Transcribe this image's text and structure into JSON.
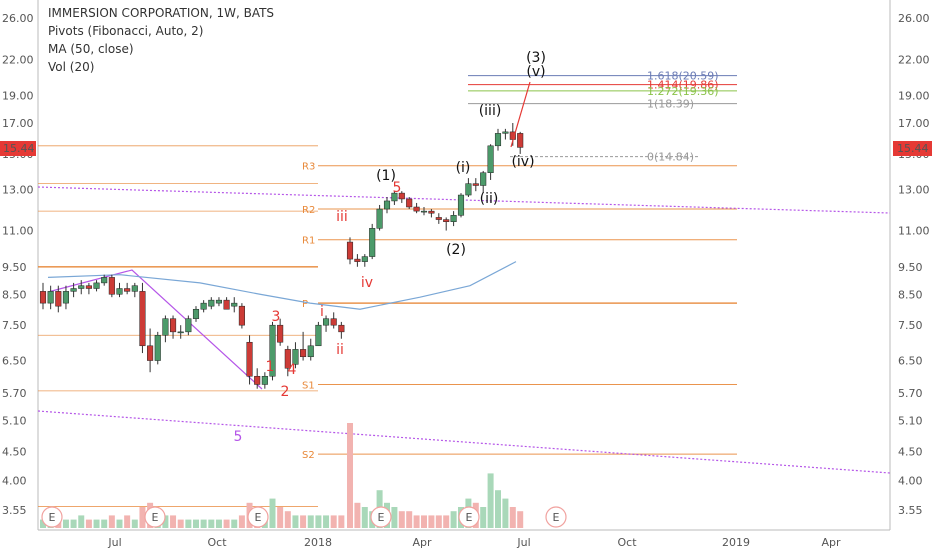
{
  "header": {
    "title": "IMMERSION CORPORATION, 1W, BATS",
    "indicator1": "Pivots (Fibonacci, Auto, 2)",
    "indicator2": "MA (50, close)",
    "indicator3": "Vol (20)"
  },
  "price_badge": "15.44",
  "colors": {
    "up": "#4c9a6a",
    "down": "#cc3b36",
    "pivot": "#e8893a",
    "fib1618": "#6a7bb5",
    "fib1414": "#e53935",
    "fib1272": "#8bc34a",
    "fib1": "#999999",
    "purple": "#b556e8",
    "ma": "#7aa7d6",
    "badge": "#e53935"
  },
  "chart_data": {
    "type": "candlestick",
    "y_ticks": [
      "26.00",
      "22.00",
      "19.00",
      "17.00",
      "15.00",
      "13.00",
      "11.00",
      "9.50",
      "8.50",
      "7.50",
      "6.50",
      "5.70",
      "5.10",
      "4.50",
      "4.00",
      "3.55"
    ],
    "x_ticks": [
      "Jul",
      "Oct",
      "2018",
      "Apr",
      "Jul",
      "Oct",
      "2019",
      "Apr"
    ],
    "candles": [
      {
        "o": 8.6,
        "h": 8.9,
        "l": 8.0,
        "c": 8.2
      },
      {
        "o": 8.2,
        "h": 8.8,
        "l": 8.0,
        "c": 8.6
      },
      {
        "o": 8.6,
        "h": 8.8,
        "l": 7.9,
        "c": 8.1
      },
      {
        "o": 8.2,
        "h": 8.8,
        "l": 8.0,
        "c": 8.6
      },
      {
        "o": 8.6,
        "h": 8.9,
        "l": 8.4,
        "c": 8.7
      },
      {
        "o": 8.7,
        "h": 9.0,
        "l": 8.5,
        "c": 8.8
      },
      {
        "o": 8.8,
        "h": 8.9,
        "l": 8.5,
        "c": 8.7
      },
      {
        "o": 8.7,
        "h": 9.0,
        "l": 8.6,
        "c": 8.9
      },
      {
        "o": 8.9,
        "h": 9.2,
        "l": 8.8,
        "c": 9.1
      },
      {
        "o": 9.1,
        "h": 9.2,
        "l": 8.4,
        "c": 8.5
      },
      {
        "o": 8.5,
        "h": 8.9,
        "l": 8.4,
        "c": 8.7
      },
      {
        "o": 8.7,
        "h": 8.9,
        "l": 8.5,
        "c": 8.6
      },
      {
        "o": 8.6,
        "h": 8.9,
        "l": 8.4,
        "c": 8.8
      },
      {
        "o": 8.6,
        "h": 8.9,
        "l": 6.7,
        "c": 6.9
      },
      {
        "o": 6.9,
        "h": 7.4,
        "l": 6.2,
        "c": 6.5
      },
      {
        "o": 6.5,
        "h": 7.3,
        "l": 6.4,
        "c": 7.2
      },
      {
        "o": 7.2,
        "h": 7.8,
        "l": 7.0,
        "c": 7.7
      },
      {
        "o": 7.7,
        "h": 7.8,
        "l": 7.1,
        "c": 7.3
      },
      {
        "o": 7.3,
        "h": 7.5,
        "l": 7.1,
        "c": 7.3
      },
      {
        "o": 7.3,
        "h": 7.8,
        "l": 7.2,
        "c": 7.7
      },
      {
        "o": 7.7,
        "h": 8.1,
        "l": 7.6,
        "c": 8.0
      },
      {
        "o": 8.0,
        "h": 8.3,
        "l": 7.9,
        "c": 8.2
      },
      {
        "o": 8.1,
        "h": 8.4,
        "l": 8.0,
        "c": 8.3
      },
      {
        "o": 8.2,
        "h": 8.4,
        "l": 8.1,
        "c": 8.3
      },
      {
        "o": 8.3,
        "h": 8.4,
        "l": 8.0,
        "c": 8.0
      },
      {
        "o": 8.1,
        "h": 8.4,
        "l": 7.9,
        "c": 8.2
      },
      {
        "o": 8.1,
        "h": 8.2,
        "l": 7.4,
        "c": 7.5
      },
      {
        "o": 7.0,
        "h": 7.2,
        "l": 5.9,
        "c": 6.1
      },
      {
        "o": 6.1,
        "h": 6.3,
        "l": 5.8,
        "c": 5.9
      },
      {
        "o": 5.9,
        "h": 6.2,
        "l": 5.8,
        "c": 6.1
      },
      {
        "o": 6.1,
        "h": 7.6,
        "l": 6.0,
        "c": 7.5
      },
      {
        "o": 7.5,
        "h": 7.7,
        "l": 6.9,
        "c": 7.0
      },
      {
        "o": 6.8,
        "h": 6.9,
        "l": 6.1,
        "c": 6.3
      },
      {
        "o": 6.4,
        "h": 7.0,
        "l": 6.3,
        "c": 6.8
      },
      {
        "o": 6.8,
        "h": 7.3,
        "l": 6.5,
        "c": 6.6
      },
      {
        "o": 6.6,
        "h": 7.1,
        "l": 6.5,
        "c": 6.9
      },
      {
        "o": 6.9,
        "h": 7.6,
        "l": 6.9,
        "c": 7.5
      },
      {
        "o": 7.5,
        "h": 7.8,
        "l": 7.3,
        "c": 7.7
      },
      {
        "o": 7.7,
        "h": 7.9,
        "l": 7.4,
        "c": 7.5
      },
      {
        "o": 7.5,
        "h": 7.6,
        "l": 7.1,
        "c": 7.3
      },
      {
        "o": 10.5,
        "h": 10.7,
        "l": 9.6,
        "c": 9.8
      },
      {
        "o": 9.8,
        "h": 10.0,
        "l": 9.5,
        "c": 9.7
      },
      {
        "o": 9.7,
        "h": 10.0,
        "l": 9.5,
        "c": 9.9
      },
      {
        "o": 9.9,
        "h": 11.3,
        "l": 9.8,
        "c": 11.1
      },
      {
        "o": 11.1,
        "h": 12.2,
        "l": 11.0,
        "c": 12.0
      },
      {
        "o": 12.0,
        "h": 12.6,
        "l": 11.8,
        "c": 12.4
      },
      {
        "o": 12.4,
        "h": 12.9,
        "l": 12.2,
        "c": 12.8
      },
      {
        "o": 12.8,
        "h": 12.9,
        "l": 12.3,
        "c": 12.5
      },
      {
        "o": 12.5,
        "h": 12.6,
        "l": 12.0,
        "c": 12.1
      },
      {
        "o": 12.1,
        "h": 12.3,
        "l": 11.8,
        "c": 11.9
      },
      {
        "o": 11.9,
        "h": 12.1,
        "l": 11.7,
        "c": 11.9
      },
      {
        "o": 11.9,
        "h": 12.0,
        "l": 11.6,
        "c": 11.8
      },
      {
        "o": 11.6,
        "h": 11.8,
        "l": 11.3,
        "c": 11.5
      },
      {
        "o": 11.5,
        "h": 11.6,
        "l": 11.0,
        "c": 11.4
      },
      {
        "o": 11.4,
        "h": 11.9,
        "l": 11.2,
        "c": 11.7
      },
      {
        "o": 11.7,
        "h": 12.8,
        "l": 11.6,
        "c": 12.7
      },
      {
        "o": 12.7,
        "h": 13.6,
        "l": 12.6,
        "c": 13.3
      },
      {
        "o": 13.3,
        "h": 13.6,
        "l": 12.9,
        "c": 13.2
      },
      {
        "o": 13.2,
        "h": 14.0,
        "l": 12.8,
        "c": 13.9
      },
      {
        "o": 13.9,
        "h": 15.6,
        "l": 13.5,
        "c": 15.5
      },
      {
        "o": 15.5,
        "h": 16.6,
        "l": 15.2,
        "c": 16.3
      },
      {
        "o": 16.3,
        "h": 16.6,
        "l": 15.9,
        "c": 16.4
      },
      {
        "o": 16.4,
        "h": 17.0,
        "l": 15.5,
        "c": 15.9
      },
      {
        "o": 16.3,
        "h": 16.4,
        "l": 15.0,
        "c": 15.4
      }
    ],
    "volume": [
      2,
      3,
      2,
      2,
      2,
      3,
      2,
      2,
      2,
      3,
      2,
      3,
      2,
      5,
      6,
      4,
      3,
      3,
      2,
      2,
      2,
      2,
      2,
      2,
      2,
      2,
      3,
      6,
      4,
      3,
      7,
      5,
      4,
      3,
      3,
      3,
      3,
      3,
      3,
      3,
      25,
      6,
      5,
      4,
      9,
      6,
      5,
      4,
      4,
      3,
      3,
      3,
      3,
      3,
      4,
      5,
      7,
      6,
      5,
      13,
      9,
      7,
      5,
      4
    ],
    "volume_up": [
      true,
      true,
      false,
      true,
      true,
      true,
      false,
      true,
      true,
      false,
      true,
      false,
      true,
      false,
      false,
      true,
      true,
      false,
      false,
      true,
      true,
      true,
      true,
      true,
      false,
      true,
      false,
      false,
      false,
      true,
      true,
      false,
      false,
      true,
      false,
      true,
      true,
      true,
      false,
      false,
      false,
      false,
      true,
      true,
      true,
      true,
      true,
      false,
      false,
      false,
      false,
      false,
      false,
      false,
      true,
      true,
      true,
      false,
      true,
      true,
      true,
      true,
      false,
      false
    ],
    "ma50": [
      [
        48,
        9.1
      ],
      [
        120,
        9.2
      ],
      [
        200,
        8.9
      ],
      [
        260,
        8.5
      ],
      [
        310,
        8.2
      ],
      [
        360,
        8.0
      ],
      [
        420,
        8.4
      ],
      [
        470,
        8.8
      ],
      [
        516,
        9.7
      ]
    ],
    "pivots": [
      {
        "label": "R3",
        "price": 14.3
      },
      {
        "label": "R2",
        "price": 12.0
      },
      {
        "label": "R1",
        "price": 10.6
      },
      {
        "label": "P",
        "price": 8.2
      },
      {
        "label": "S1",
        "price": 5.9
      },
      {
        "label": "S2",
        "price": 4.45
      }
    ],
    "pivot_tick_labels": [
      {
        "label": "R3",
        "text": "R3"
      },
      {
        "label": "R2",
        "text": "R2"
      },
      {
        "label": "R1",
        "text": "R1"
      },
      {
        "label": "P",
        "text": "P"
      },
      {
        "label": "S1",
        "text": "S1"
      },
      {
        "label": "S2",
        "text": "S2"
      }
    ],
    "fib_levels": [
      {
        "text": "1.618(20.59)",
        "price": 20.59,
        "color": "#6a7bb5"
      },
      {
        "text": "1.414(19.86)",
        "price": 19.86,
        "color": "#e53935"
      },
      {
        "text": "1.272(19.36)",
        "price": 19.36,
        "color": "#8bc34a"
      },
      {
        "text": "1(18.39)",
        "price": 18.39,
        "color": "#999999"
      },
      {
        "text": "0(14.84)",
        "price": 14.84,
        "color": "#999999"
      }
    ],
    "wave_labels_red": [
      "3",
      "1",
      "2",
      "4",
      "5",
      "i",
      "ii",
      "iii",
      "iv"
    ],
    "wave_labels_black": [
      "(1)",
      "(2)",
      "(i)",
      "(ii)",
      "(iii)",
      "(iv)",
      "(3)",
      "(v)"
    ],
    "wave_label_purple": "5",
    "events_label": "E"
  }
}
